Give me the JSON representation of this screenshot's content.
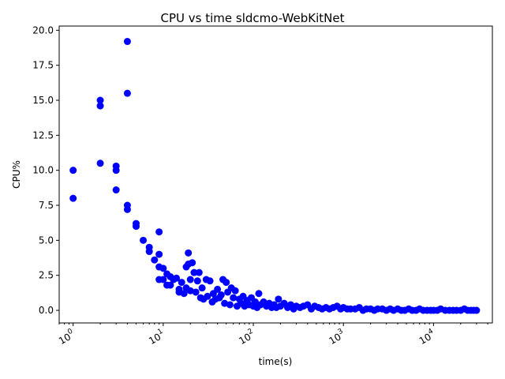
{
  "chart_data": {
    "type": "scatter",
    "title": "CPU vs time sldcmo-WebKitNet",
    "xlabel": "time(s)",
    "ylabel": "CPU%",
    "xscale": "log",
    "xlim": [
      0.7,
      45000
    ],
    "ylim": [
      -0.9,
      20.3
    ],
    "x_ticks": [
      {
        "base": "10",
        "exp": "0",
        "value": 1
      },
      {
        "base": "10",
        "exp": "1",
        "value": 10
      },
      {
        "base": "10",
        "exp": "2",
        "value": 100
      },
      {
        "base": "10",
        "exp": "3",
        "value": 1000
      },
      {
        "base": "10",
        "exp": "4",
        "value": 10000
      }
    ],
    "y_ticks": [
      "0.0",
      "2.5",
      "5.0",
      "7.5",
      "10.0",
      "12.5",
      "15.0",
      "17.5",
      "20.0"
    ],
    "marker_color": "#0000ff",
    "grid": false,
    "x": [
      1,
      1,
      2,
      2,
      2,
      3,
      3,
      3,
      4,
      4,
      4,
      4,
      5,
      5,
      6,
      7,
      7,
      8,
      9,
      9,
      9,
      9,
      10,
      10,
      11,
      11,
      12,
      12,
      13,
      14,
      15,
      15,
      16,
      17,
      18,
      18,
      19,
      19,
      20,
      20,
      21,
      22,
      23,
      24,
      25,
      26,
      27,
      28,
      30,
      31,
      33,
      35,
      36,
      38,
      40,
      42,
      44,
      46,
      48,
      50,
      52,
      55,
      57,
      60,
      63,
      66,
      70,
      73,
      77,
      80,
      85,
      90,
      95,
      100,
      105,
      110,
      115,
      120,
      130,
      140,
      150,
      160,
      170,
      180,
      190,
      200,
      220,
      240,
      260,
      280,
      300,
      330,
      360,
      400,
      440,
      480,
      530,
      580,
      640,
      700,
      770,
      850,
      930,
      1000,
      1100,
      1200,
      1350,
      1500,
      1650,
      1800,
      2000,
      2200,
      2400,
      2700,
      3000,
      3300,
      3600,
      4000,
      4400,
      4800,
      5300,
      5800,
      6400,
      7000,
      7700,
      8500,
      9300,
      10000,
      11000,
      12000,
      13500,
      15000,
      16500,
      18000,
      20000,
      22000,
      24000,
      26000,
      28000,
      30000
    ],
    "y": [
      10.0,
      8.0,
      15.0,
      14.6,
      10.5,
      10.3,
      10.0,
      8.6,
      19.2,
      15.5,
      7.5,
      7.2,
      6.2,
      6.0,
      5.0,
      4.5,
      4.2,
      3.6,
      5.6,
      4.0,
      3.1,
      2.2,
      3.0,
      2.2,
      2.6,
      1.8,
      2.4,
      1.8,
      2.2,
      2.3,
      1.5,
      1.3,
      2.0,
      1.2,
      3.1,
      1.6,
      4.1,
      3.3,
      1.4,
      2.2,
      3.4,
      2.7,
      1.3,
      2.1,
      2.7,
      0.9,
      1.6,
      0.8,
      2.2,
      1.0,
      2.1,
      0.6,
      1.2,
      0.8,
      1.5,
      0.9,
      1.1,
      2.2,
      0.5,
      2.0,
      1.3,
      0.4,
      1.6,
      0.9,
      1.4,
      0.3,
      0.8,
      0.5,
      1.0,
      0.3,
      0.7,
      0.4,
      0.9,
      0.3,
      0.6,
      0.2,
      1.2,
      0.4,
      0.6,
      0.3,
      0.5,
      0.2,
      0.4,
      0.2,
      0.8,
      0.3,
      0.5,
      0.2,
      0.4,
      0.1,
      0.3,
      0.2,
      0.3,
      0.4,
      0.1,
      0.3,
      0.2,
      0.1,
      0.2,
      0.1,
      0.2,
      0.3,
      0.1,
      0.2,
      0.1,
      0.1,
      0.1,
      0.2,
      0.0,
      0.1,
      0.1,
      0.0,
      0.1,
      0.1,
      0.0,
      0.1,
      0.0,
      0.1,
      0.0,
      0.0,
      0.1,
      0.0,
      0.0,
      0.1,
      0.0,
      0.0,
      0.0,
      0.0,
      0.0,
      0.1,
      0.0,
      0.0,
      0.0,
      0.0,
      0.0,
      0.1,
      0.0,
      0.0,
      0.0,
      0.0
    ]
  }
}
